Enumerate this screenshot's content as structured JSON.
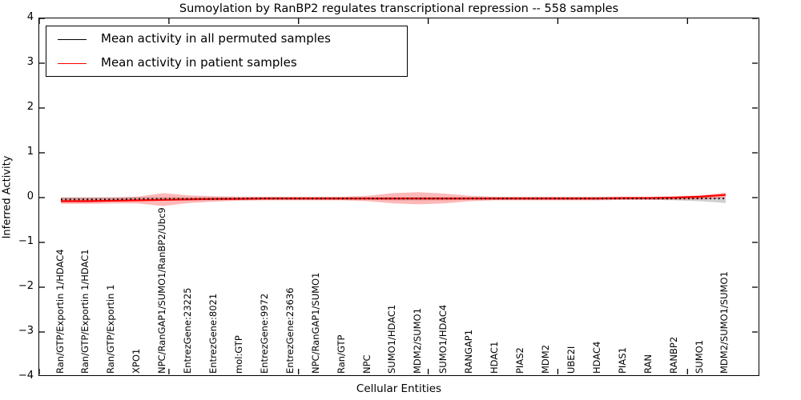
{
  "title": "Sumoylation by RanBP2 regulates transcriptional repression -- 558 samples",
  "legend": {
    "items": [
      {
        "label": "Mean activity in all permuted samples",
        "color": "#000000"
      },
      {
        "label": "Mean activity in patient samples",
        "color": "#ff0000"
      }
    ]
  },
  "chart_data": {
    "type": "line",
    "title": "Sumoylation by RanBP2 regulates transcriptional repression -- 558 samples",
    "xlabel": "Cellular Entities",
    "ylabel": "Inferred Activity",
    "ylim": [
      -4,
      4
    ],
    "yticks": [
      4,
      3,
      2,
      1,
      0,
      -1,
      -2,
      -3,
      -4
    ],
    "ytick_labels": [
      "4",
      "3",
      "2",
      "1",
      "0",
      "−1",
      "−2",
      "−3",
      "−4"
    ],
    "grid": false,
    "legend_position": "upper left",
    "categories": [
      "Ran/GTP/Exportin 1/HDAC4",
      "Ran/GTP/Exportin 1/HDAC1",
      "Ran/GTP/Exportin 1",
      "XPO1",
      "NPC/RanGAP1/SUMO1/RanBP2/Ubc9",
      "EntrezGene:23225",
      "EntrezGene:8021",
      "mol:GTP",
      "EntrezGene:9972",
      "EntrezGene:23636",
      "NPC/RanGAP1/SUMO1",
      "Ran/GTP",
      "NPC",
      "SUMO1/HDAC1",
      "MDM2/SUMO1",
      "SUMO1/HDAC4",
      "RANGAP1",
      "HDAC1",
      "PIAS2",
      "MDM2",
      "UBE2I",
      "HDAC4",
      "PIAS1",
      "RAN",
      "RANBP2",
      "SUMO1",
      "MDM2/SUMO1/SUMO1"
    ],
    "series": [
      {
        "name": "Mean activity in all permuted samples",
        "color": "#000000",
        "style": "dotted",
        "values": [
          -0.04,
          -0.04,
          -0.04,
          -0.03,
          -0.03,
          -0.03,
          -0.03,
          -0.02,
          -0.02,
          -0.02,
          -0.02,
          -0.02,
          -0.02,
          -0.02,
          -0.02,
          -0.02,
          -0.02,
          -0.02,
          -0.02,
          -0.02,
          -0.02,
          -0.02,
          -0.02,
          -0.02,
          -0.02,
          -0.02,
          -0.02
        ],
        "band_upper": [
          0.01,
          0.01,
          0.01,
          0.01,
          0.01,
          0.01,
          0.01,
          0.01,
          0.01,
          0.01,
          0.01,
          0.01,
          0.01,
          0.01,
          0.01,
          0.01,
          0.01,
          0.01,
          0.01,
          0.01,
          0.01,
          0.01,
          0.01,
          0.01,
          0.01,
          0.01,
          0.01
        ],
        "band_lower": [
          -0.08,
          -0.08,
          -0.07,
          -0.07,
          -0.07,
          -0.06,
          -0.06,
          -0.05,
          -0.05,
          -0.05,
          -0.05,
          -0.05,
          -0.05,
          -0.06,
          -0.06,
          -0.06,
          -0.05,
          -0.05,
          -0.05,
          -0.05,
          -0.05,
          -0.05,
          -0.05,
          -0.05,
          -0.06,
          -0.08,
          -0.12
        ],
        "band_color": "rgba(120,120,120,0.35)"
      },
      {
        "name": "Mean activity in patient samples",
        "color": "#ff0000",
        "style": "solid",
        "values": [
          -0.08,
          -0.08,
          -0.07,
          -0.06,
          -0.05,
          -0.04,
          -0.03,
          -0.03,
          -0.02,
          -0.02,
          -0.02,
          -0.02,
          -0.02,
          -0.02,
          -0.02,
          -0.02,
          -0.02,
          -0.02,
          -0.02,
          -0.02,
          -0.02,
          -0.02,
          -0.01,
          -0.01,
          0.0,
          0.02,
          0.06
        ],
        "band_upper": [
          0.0,
          0.0,
          0.0,
          0.02,
          0.1,
          0.05,
          0.03,
          0.02,
          0.02,
          0.02,
          0.02,
          0.02,
          0.04,
          0.1,
          0.12,
          0.09,
          0.04,
          0.02,
          0.02,
          0.02,
          0.02,
          0.02,
          0.02,
          0.02,
          0.03,
          0.05,
          0.11
        ],
        "band_lower": [
          -0.14,
          -0.14,
          -0.13,
          -0.13,
          -0.19,
          -0.12,
          -0.09,
          -0.07,
          -0.06,
          -0.06,
          -0.06,
          -0.06,
          -0.08,
          -0.13,
          -0.15,
          -0.13,
          -0.08,
          -0.06,
          -0.06,
          -0.06,
          -0.06,
          -0.06,
          -0.05,
          -0.05,
          -0.05,
          -0.04,
          -0.01
        ],
        "band_color": "rgba(255,0,0,0.28)"
      }
    ]
  }
}
